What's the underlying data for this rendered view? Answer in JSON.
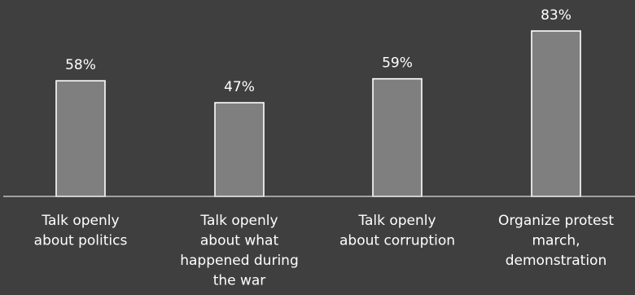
{
  "chart_data": {
    "type": "bar",
    "categories": [
      [
        "Talk openly",
        "about politics"
      ],
      [
        "Talk openly",
        "about what",
        "happened during",
        "the war"
      ],
      [
        "Talk openly",
        "about corruption"
      ],
      [
        "Organize protest",
        "march,",
        "demonstration"
      ]
    ],
    "values": [
      58,
      47,
      59,
      83
    ],
    "data_labels": [
      "58%",
      "47%",
      "59%",
      "83%"
    ],
    "ylim": [
      0,
      85
    ],
    "grid": false,
    "colors": {
      "background": "#3f3f3f",
      "bar_fill": "#7f7f7f",
      "bar_stroke": "#ffffff",
      "text": "#ffffff",
      "axis": "#d9d9d9"
    }
  }
}
